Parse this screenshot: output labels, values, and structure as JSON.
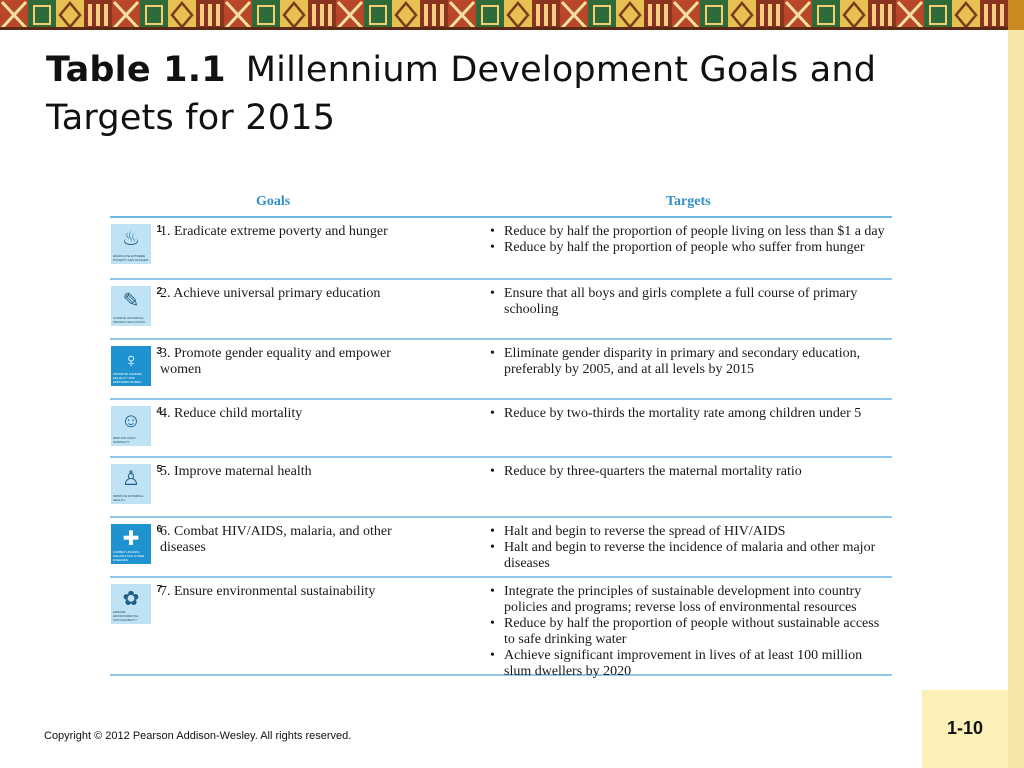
{
  "slide": {
    "title_bold": "Table 1.1",
    "title_rest": "Millennium Development Goals and Targets for 2015",
    "copyright": "Copyright © 2012 Pearson Addison-Wesley. All rights reserved.",
    "page_number": "1-10"
  },
  "table": {
    "goals_header": "Goals",
    "targets_header": "Targets",
    "rows": [
      {
        "number": "1",
        "icon": "bowl-icon",
        "glyph": "♨",
        "icon_caption": "ERADICATE EXTREME POVERTY AND HUNGER",
        "dark": false,
        "goal": "1. Eradicate extreme poverty and hunger",
        "targets": [
          "Reduce by half the proportion of people living on less than $1 a day",
          "Reduce by half the proportion of people who suffer from hunger"
        ]
      },
      {
        "number": "2",
        "icon": "pencil-icon",
        "glyph": "✎",
        "icon_caption": "ACHIEVE UNIVERSAL PRIMARY EDUCATION",
        "dark": false,
        "goal": "2. Achieve universal primary education",
        "targets": [
          "Ensure that all boys and girls complete a full course of primary schooling"
        ]
      },
      {
        "number": "3",
        "icon": "female-symbol-icon",
        "glyph": "♀",
        "icon_caption": "PROMOTE GENDER EQUALITY AND EMPOWER WOMEN",
        "dark": true,
        "goal": "3. Promote gender equality and empower women",
        "targets": [
          "Eliminate gender disparity in primary and secondary education, preferably by 2005, and at all levels by 2015"
        ]
      },
      {
        "number": "4",
        "icon": "child-icon",
        "glyph": "☺",
        "icon_caption": "REDUCE CHILD MORTALITY",
        "dark": false,
        "goal": "4. Reduce child mortality",
        "targets": [
          "Reduce by two-thirds the mortality rate among children under 5"
        ]
      },
      {
        "number": "5",
        "icon": "mother-icon",
        "glyph": "♙",
        "icon_caption": "IMPROVE MATERNAL HEALTH",
        "dark": false,
        "goal": "5. Improve maternal health",
        "targets": [
          "Reduce by three-quarters the maternal mortality ratio"
        ]
      },
      {
        "number": "6",
        "icon": "medicine-jar-icon",
        "glyph": "✚",
        "icon_caption": "COMBAT HIV/AIDS, MALARIA AND OTHER DISEASES",
        "dark": true,
        "goal": "6. Combat HIV/AIDS, malaria, and other diseases",
        "targets": [
          "Halt and begin to reverse the spread of HIV/AIDS",
          "Halt and begin to reverse the incidence of malaria and other major diseases"
        ]
      },
      {
        "number": "7",
        "icon": "flower-icon",
        "glyph": "✿",
        "icon_caption": "ENSURE ENVIRONMENTAL SUSTAINABILITY",
        "dark": false,
        "goal": "7. Ensure environmental sustainability",
        "targets": [
          "Integrate the principles of sustainable development into country policies and programs; reverse loss of environmental resources",
          "Reduce by half the proportion of people without sustainable access to safe drinking water",
          "Achieve significant improvement in lives of at least 100 million slum dwellers by 2020"
        ]
      }
    ]
  }
}
